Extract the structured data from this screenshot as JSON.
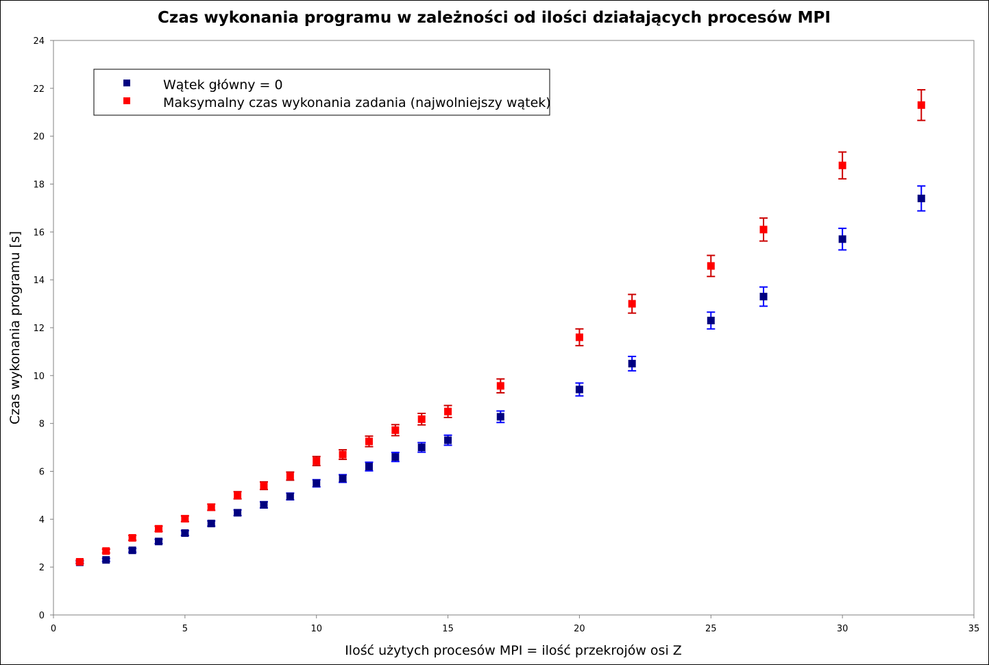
{
  "chart_data": {
    "type": "scatter",
    "title": "Czas wykonania programu w zależności od ilości działających procesów MPI",
    "xlabel": "Ilość użytych procesów MPI = ilość przekrojów osi Z",
    "ylabel": "Czas wykonania programu [s]",
    "xlim": [
      0,
      35
    ],
    "ylim": [
      0,
      24
    ],
    "xticks": [
      0,
      5,
      10,
      15,
      20,
      25,
      30,
      35
    ],
    "yticks": [
      0,
      2,
      4,
      6,
      8,
      10,
      12,
      14,
      16,
      18,
      20,
      22,
      24
    ],
    "grid": false,
    "legend_position": "top-left",
    "series": [
      {
        "name": "Wątek główny = 0",
        "color": "#000080",
        "error_color": "#0000ff",
        "marker": "square",
        "x": [
          1,
          2,
          3,
          4,
          5,
          6,
          7,
          8,
          9,
          10,
          11,
          12,
          13,
          14,
          15,
          17,
          20,
          22,
          25,
          27,
          30,
          33
        ],
        "y": [
          2.2,
          2.3,
          2.7,
          3.07,
          3.42,
          3.82,
          4.27,
          4.6,
          4.95,
          5.5,
          5.7,
          6.2,
          6.6,
          7.0,
          7.3,
          8.28,
          9.42,
          10.5,
          12.3,
          13.3,
          15.7,
          17.4
        ],
        "err": [
          0.05,
          0.06,
          0.08,
          0.09,
          0.1,
          0.11,
          0.12,
          0.13,
          0.14,
          0.15,
          0.16,
          0.18,
          0.19,
          0.2,
          0.21,
          0.24,
          0.27,
          0.3,
          0.35,
          0.4,
          0.45,
          0.52
        ]
      },
      {
        "name": "Maksymalny czas wykonania zadania (najwolniejszy wątek)",
        "color": "#ff0000",
        "error_color": "#cc0000",
        "marker": "square",
        "x": [
          1,
          2,
          3,
          4,
          5,
          6,
          7,
          8,
          9,
          10,
          11,
          12,
          13,
          14,
          15,
          17,
          20,
          22,
          25,
          27,
          30,
          33
        ],
        "y": [
          2.22,
          2.67,
          3.22,
          3.6,
          4.02,
          4.5,
          5.0,
          5.4,
          5.8,
          6.43,
          6.7,
          7.25,
          7.72,
          8.18,
          8.5,
          9.57,
          11.6,
          13.0,
          14.58,
          16.1,
          18.78,
          21.3
        ],
        "err": [
          0.06,
          0.08,
          0.1,
          0.11,
          0.12,
          0.13,
          0.15,
          0.16,
          0.17,
          0.19,
          0.2,
          0.22,
          0.23,
          0.24,
          0.25,
          0.29,
          0.35,
          0.39,
          0.44,
          0.48,
          0.56,
          0.64
        ]
      }
    ]
  }
}
